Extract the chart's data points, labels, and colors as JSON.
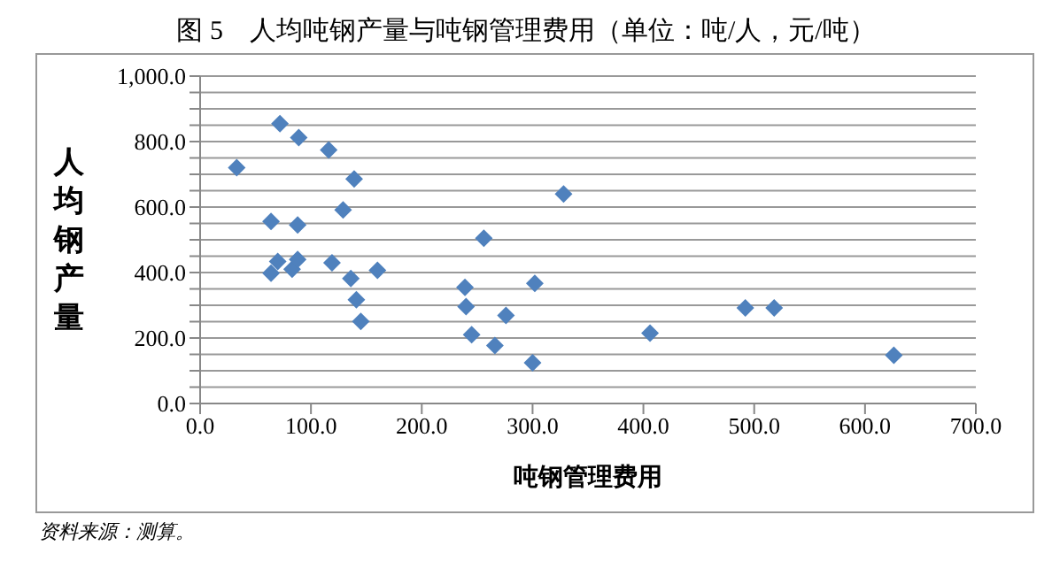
{
  "chart_data": {
    "type": "scatter",
    "title": "图 5　人均吨钢产量与吨钢管理费用（单位：吨/人，元/吨）",
    "xlabel": "吨钢管理费用",
    "ylabel": "人均钢产量",
    "series": [
      {
        "color": "#4f81bd",
        "x": [
          33,
          72,
          89,
          116,
          139,
          129,
          64,
          88,
          64,
          70,
          83,
          88,
          119,
          136,
          160,
          141,
          145,
          328,
          256,
          239,
          240,
          302,
          276,
          245,
          266,
          300,
          406,
          492,
          518,
          626
        ],
        "values": [
          720,
          855,
          812,
          774,
          686,
          591,
          556,
          545,
          398,
          434,
          410,
          440,
          430,
          382,
          407,
          317,
          251,
          640,
          505,
          355,
          296,
          367,
          269,
          210,
          177,
          124,
          215,
          292,
          292,
          147
        ]
      }
    ],
    "marker": "diamond",
    "grid": "y",
    "xlim": [
      0,
      700
    ],
    "xticks": [
      {
        "value": 0,
        "label": "0.0"
      },
      {
        "value": 100,
        "label": "100.0"
      },
      {
        "value": 200,
        "label": "200.0"
      },
      {
        "value": 300,
        "label": "300.0"
      },
      {
        "value": 400,
        "label": "400.0"
      },
      {
        "value": 500,
        "label": "500.0"
      },
      {
        "value": 600,
        "label": "600.0"
      },
      {
        "value": 700,
        "label": "700.0"
      }
    ],
    "ylim": [
      0,
      1000
    ],
    "yticks": [
      {
        "value": 0,
        "label": "0.0"
      },
      {
        "value": 50,
        "label": null
      },
      {
        "value": 100,
        "label": null
      },
      {
        "value": 150,
        "label": null
      },
      {
        "value": 200,
        "label": "200.0"
      },
      {
        "value": 250,
        "label": null
      },
      {
        "value": 300,
        "label": null
      },
      {
        "value": 350,
        "label": null
      },
      {
        "value": 400,
        "label": "400.0"
      },
      {
        "value": 450,
        "label": null
      },
      {
        "value": 500,
        "label": null
      },
      {
        "value": 550,
        "label": null
      },
      {
        "value": 600,
        "label": "600.0"
      },
      {
        "value": 650,
        "label": null
      },
      {
        "value": 700,
        "label": null
      },
      {
        "value": 750,
        "label": null
      },
      {
        "value": 800,
        "label": "800.0"
      },
      {
        "value": 850,
        "label": null
      },
      {
        "value": 900,
        "label": null
      },
      {
        "value": 950,
        "label": null
      },
      {
        "value": 1000,
        "label": "1,000.0"
      }
    ],
    "annotations": [
      "资料来源：测算。"
    ]
  }
}
